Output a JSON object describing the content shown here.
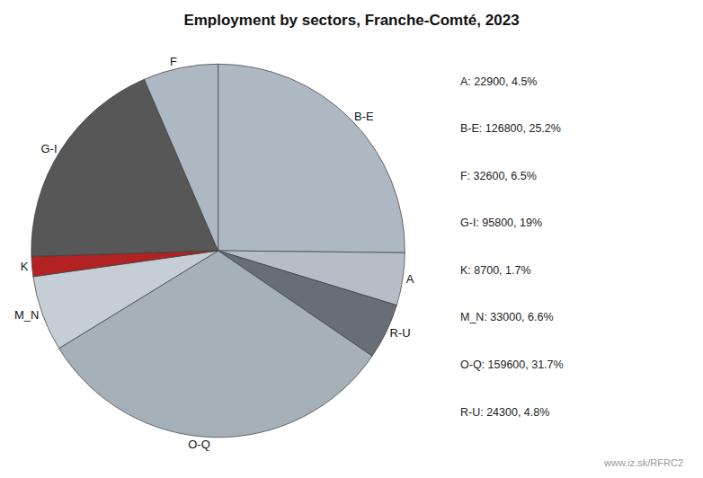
{
  "chart_data": {
    "type": "pie",
    "title": "Employment by sectors, Franche-Comté, 2023",
    "categories": [
      "B-E",
      "A",
      "R-U",
      "O-Q",
      "M_N",
      "K",
      "G-I",
      "F"
    ],
    "values": [
      126800,
      22900,
      24300,
      159600,
      33000,
      8700,
      95800,
      32600
    ],
    "colors": [
      "#adb8c2",
      "#b5bec7",
      "#676e76",
      "#a5b0b9",
      "#c5cdd5",
      "#b22222",
      "#575757",
      "#adb8c2"
    ],
    "annotations": [
      "A: 22900, 4.5%",
      "B-E: 126800, 25.2%",
      "F: 32600, 6.5%",
      "G-I: 95800, 19%",
      "K: 8700, 1.7%",
      "M_N: 33000, 6.6%",
      "O-Q: 159600, 31.7%",
      "R-U: 24300, 4.8%",
      "www.iz.sk/RFRC2"
    ]
  }
}
